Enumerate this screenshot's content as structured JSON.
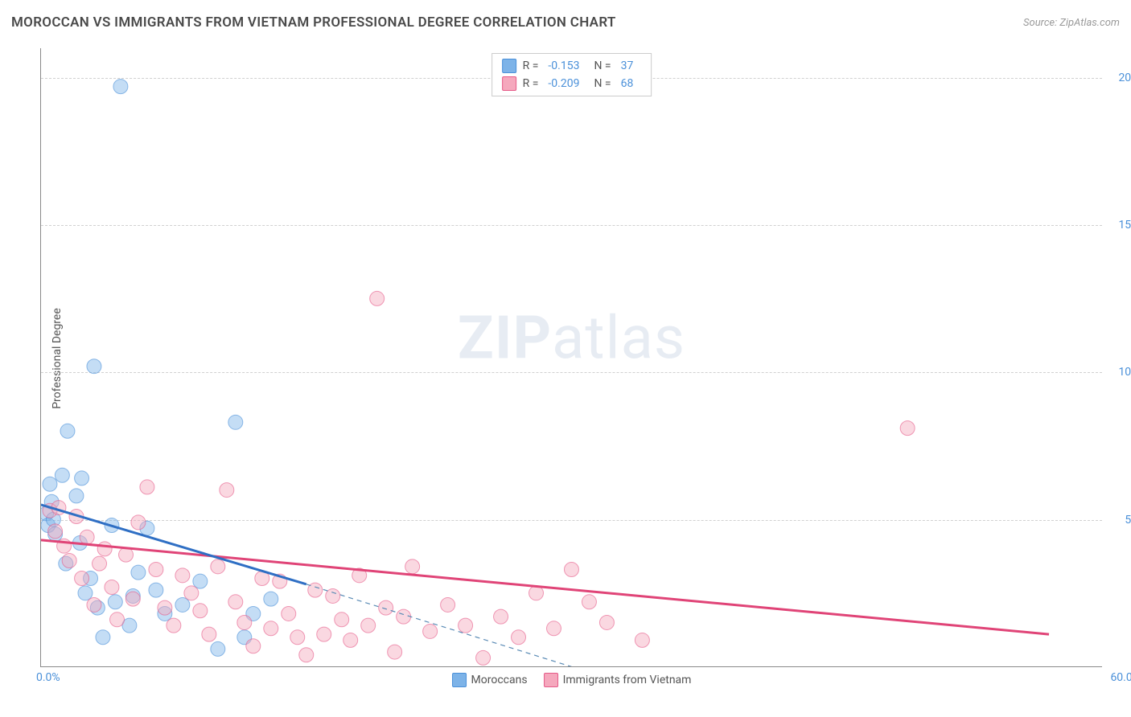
{
  "title": "MOROCCAN VS IMMIGRANTS FROM VIETNAM PROFESSIONAL DEGREE CORRELATION CHART",
  "source": "Source: ZipAtlas.com",
  "ylabel": "Professional Degree",
  "watermark_bold": "ZIP",
  "watermark_rest": "atlas",
  "chart": {
    "type": "scatter",
    "xlim": [
      0,
      60
    ],
    "ylim": [
      0,
      21
    ],
    "xticks": {
      "min": "0.0%",
      "max": "60.0%"
    },
    "yticks": [
      {
        "v": 5.0,
        "label": "5.0%"
      },
      {
        "v": 10.0,
        "label": "10.0%"
      },
      {
        "v": 15.0,
        "label": "15.0%"
      },
      {
        "v": 20.0,
        "label": "20.0%"
      }
    ],
    "grid_color": "#d0d0d0",
    "axis_color": "#888888",
    "background_color": "#ffffff",
    "marker_radius": 9,
    "marker_opacity": 0.45,
    "series": [
      {
        "name": "Moroccans",
        "color": "#7db3e8",
        "stroke": "#4a90d9",
        "line_color": "#2f6fc4",
        "R": "-0.153",
        "N": "37",
        "trend": {
          "x1": 0,
          "y1": 5.5,
          "x2": 15,
          "y2": 2.8,
          "dash_x2": 30,
          "dash_y2": 0
        },
        "points": [
          [
            0.3,
            5.2
          ],
          [
            0.4,
            4.8
          ],
          [
            0.5,
            6.2
          ],
          [
            0.6,
            5.6
          ],
          [
            0.7,
            5.0
          ],
          [
            0.8,
            4.5
          ],
          [
            1.2,
            6.5
          ],
          [
            1.4,
            3.5
          ],
          [
            1.5,
            8.0
          ],
          [
            2.0,
            5.8
          ],
          [
            2.2,
            4.2
          ],
          [
            2.3,
            6.4
          ],
          [
            2.5,
            2.5
          ],
          [
            2.8,
            3.0
          ],
          [
            3.0,
            10.2
          ],
          [
            3.2,
            2.0
          ],
          [
            3.5,
            1.0
          ],
          [
            4.0,
            4.8
          ],
          [
            4.2,
            2.2
          ],
          [
            4.5,
            19.7
          ],
          [
            5.0,
            1.4
          ],
          [
            5.2,
            2.4
          ],
          [
            5.5,
            3.2
          ],
          [
            6.0,
            4.7
          ],
          [
            6.5,
            2.6
          ],
          [
            7.0,
            1.8
          ],
          [
            8.0,
            2.1
          ],
          [
            9.0,
            2.9
          ],
          [
            10.0,
            0.6
          ],
          [
            11.0,
            8.3
          ],
          [
            11.5,
            1.0
          ],
          [
            12.0,
            1.8
          ],
          [
            13.0,
            2.3
          ]
        ]
      },
      {
        "name": "Immigrants from Vietnam",
        "color": "#f5a8bd",
        "stroke": "#e65a88",
        "line_color": "#e04477",
        "R": "-0.209",
        "N": "68",
        "trend": {
          "x1": 0,
          "y1": 4.3,
          "x2": 57,
          "y2": 1.1
        },
        "points": [
          [
            0.5,
            5.3
          ],
          [
            0.8,
            4.6
          ],
          [
            1.0,
            5.4
          ],
          [
            1.3,
            4.1
          ],
          [
            1.6,
            3.6
          ],
          [
            2.0,
            5.1
          ],
          [
            2.3,
            3.0
          ],
          [
            2.6,
            4.4
          ],
          [
            3.0,
            2.1
          ],
          [
            3.3,
            3.5
          ],
          [
            3.6,
            4.0
          ],
          [
            4.0,
            2.7
          ],
          [
            4.3,
            1.6
          ],
          [
            4.8,
            3.8
          ],
          [
            5.2,
            2.3
          ],
          [
            5.5,
            4.9
          ],
          [
            6.0,
            6.1
          ],
          [
            6.5,
            3.3
          ],
          [
            7.0,
            2.0
          ],
          [
            7.5,
            1.4
          ],
          [
            8.0,
            3.1
          ],
          [
            8.5,
            2.5
          ],
          [
            9.0,
            1.9
          ],
          [
            9.5,
            1.1
          ],
          [
            10.0,
            3.4
          ],
          [
            10.5,
            6.0
          ],
          [
            11.0,
            2.2
          ],
          [
            11.5,
            1.5
          ],
          [
            12.0,
            0.7
          ],
          [
            12.5,
            3.0
          ],
          [
            13.0,
            1.3
          ],
          [
            13.5,
            2.9
          ],
          [
            14.0,
            1.8
          ],
          [
            14.5,
            1.0
          ],
          [
            15.0,
            0.4
          ],
          [
            15.5,
            2.6
          ],
          [
            16.0,
            1.1
          ],
          [
            16.5,
            2.4
          ],
          [
            17.0,
            1.6
          ],
          [
            17.5,
            0.9
          ],
          [
            18.0,
            3.1
          ],
          [
            18.5,
            1.4
          ],
          [
            19.0,
            12.5
          ],
          [
            19.5,
            2.0
          ],
          [
            20.0,
            0.5
          ],
          [
            20.5,
            1.7
          ],
          [
            21.0,
            3.4
          ],
          [
            22.0,
            1.2
          ],
          [
            23.0,
            2.1
          ],
          [
            24.0,
            1.4
          ],
          [
            25.0,
            0.3
          ],
          [
            26.0,
            1.7
          ],
          [
            27.0,
            1.0
          ],
          [
            28.0,
            2.5
          ],
          [
            29.0,
            1.3
          ],
          [
            30.0,
            3.3
          ],
          [
            31.0,
            2.2
          ],
          [
            32.0,
            1.5
          ],
          [
            34.0,
            0.9
          ],
          [
            49.0,
            8.1
          ]
        ]
      }
    ]
  },
  "bottom_legend": [
    {
      "label": "Moroccans"
    },
    {
      "label": "Immigrants from Vietnam"
    }
  ]
}
